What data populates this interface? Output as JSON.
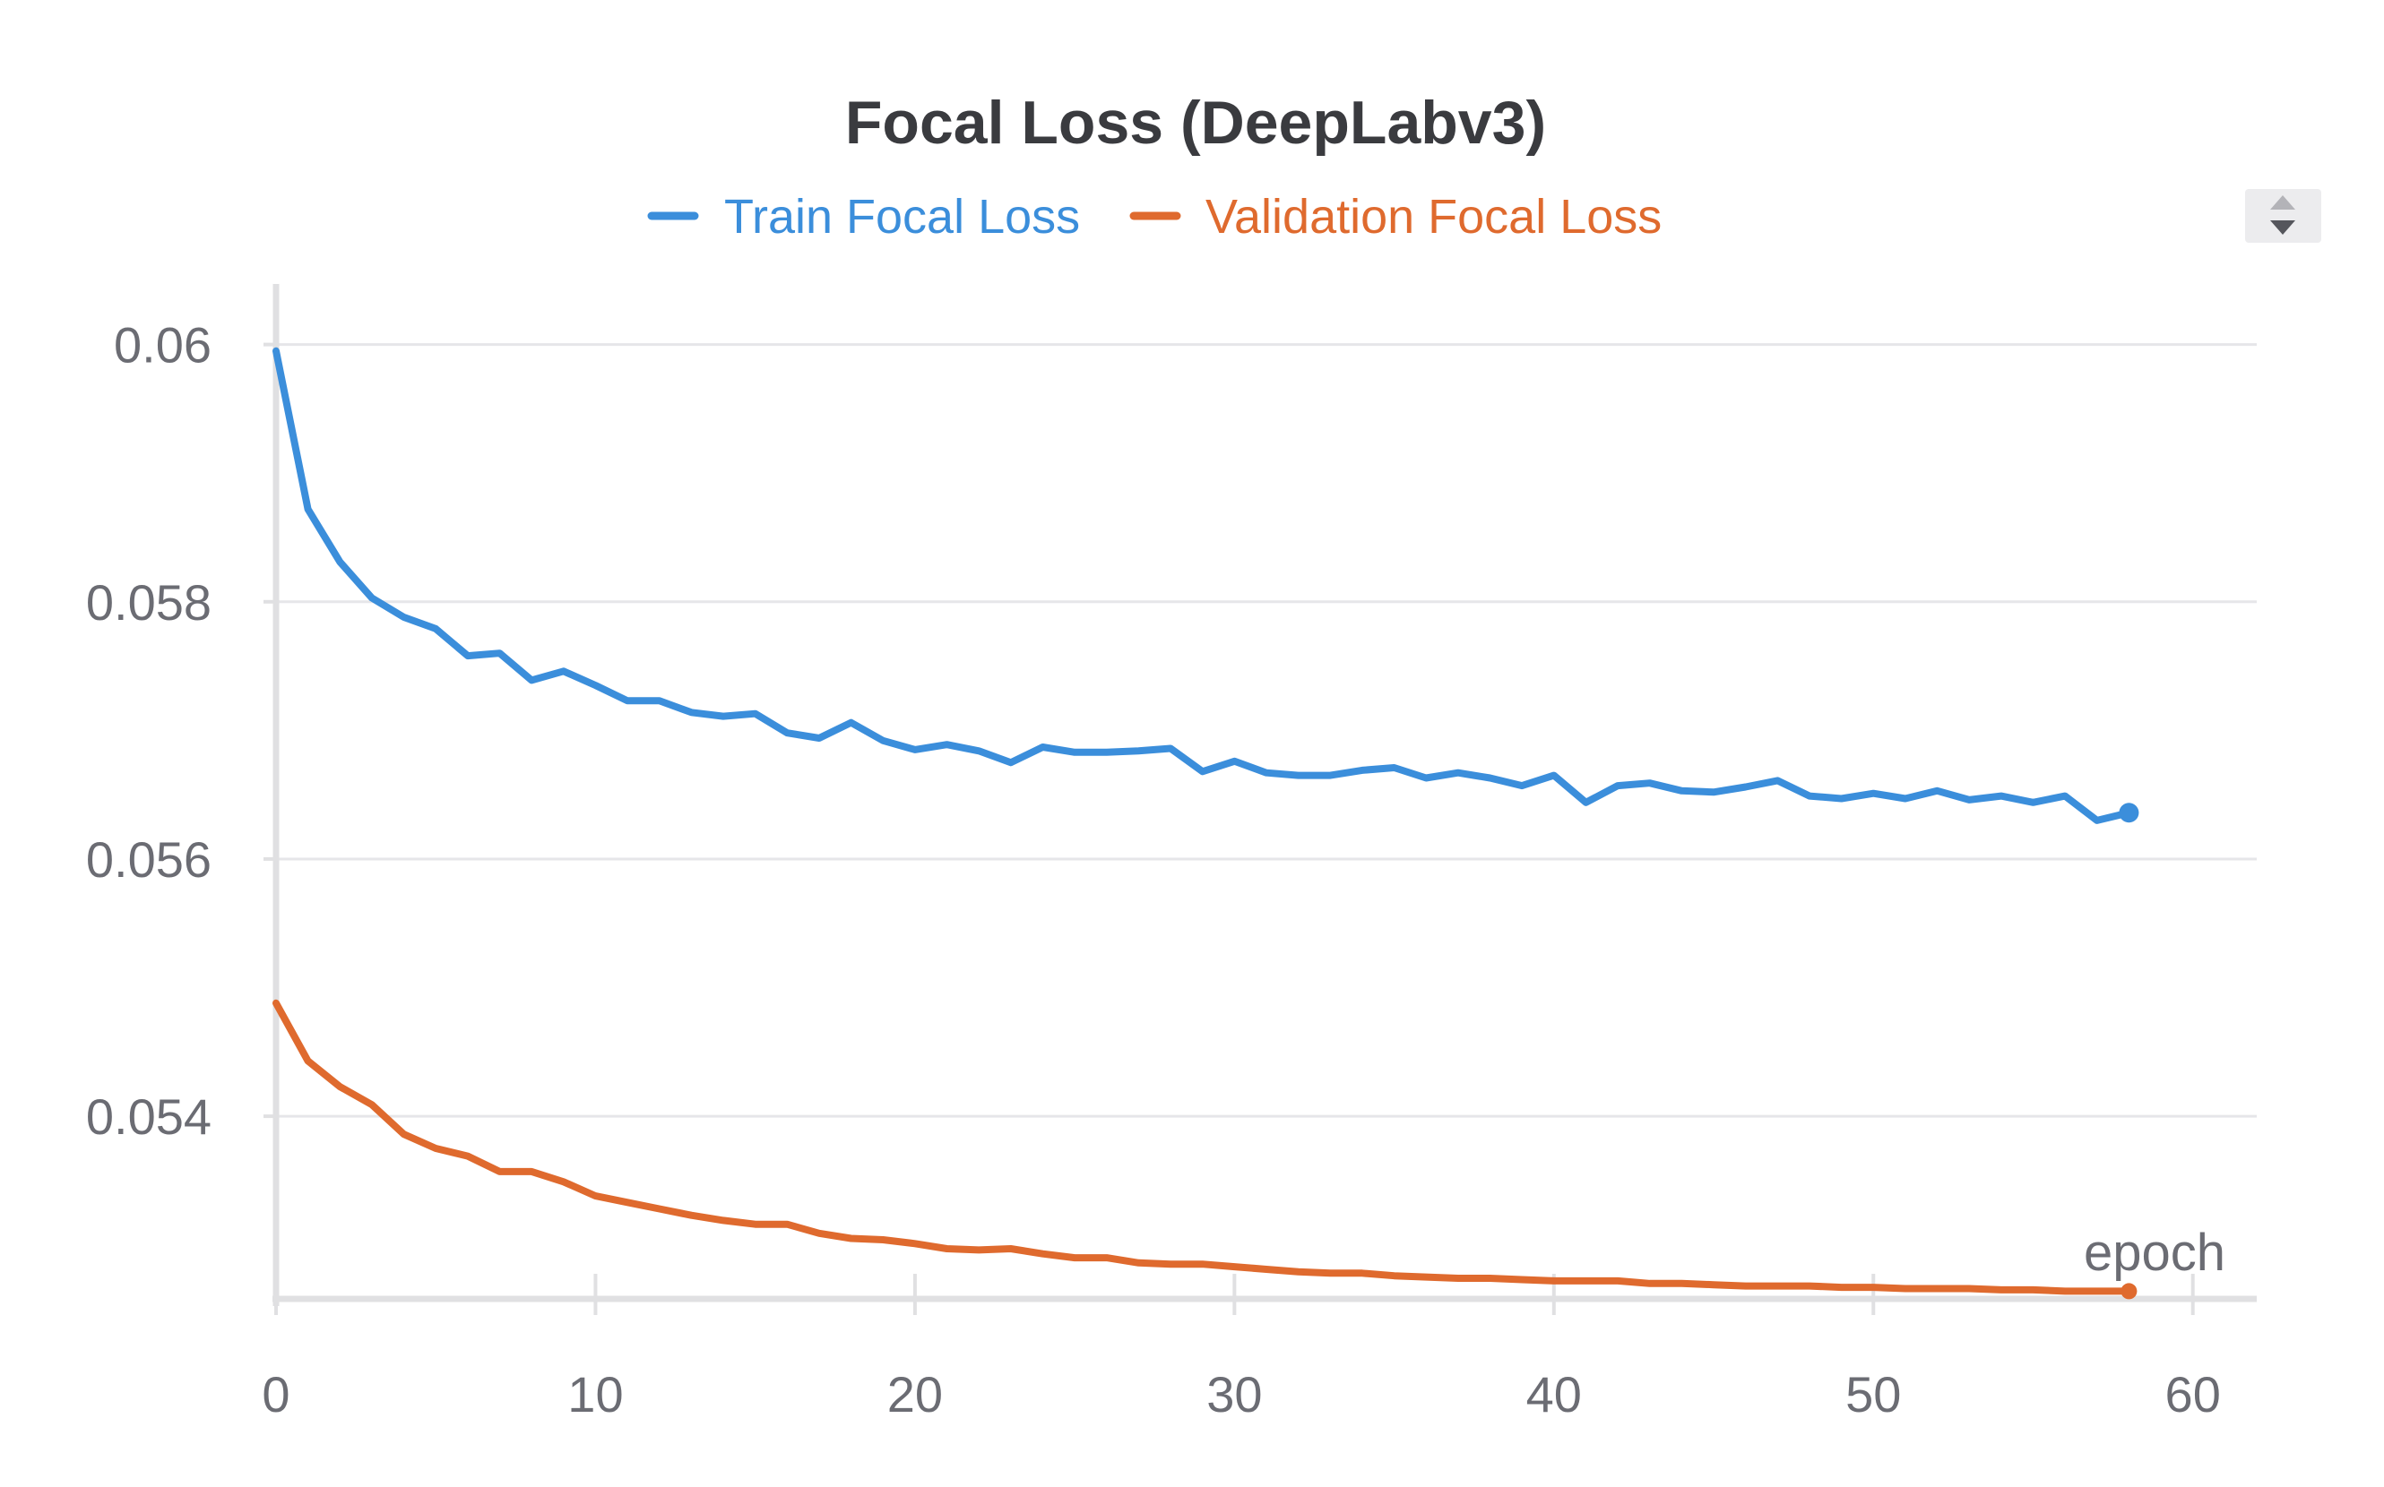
{
  "chart_data": {
    "type": "line",
    "title": "Focal Loss (DeepLabv3)",
    "xlabel": "epoch",
    "ylabel": "",
    "xlim": [
      0,
      62
    ],
    "ylim": [
      0.05258,
      0.06045
    ],
    "x_ticks": [
      0,
      10,
      20,
      30,
      40,
      50,
      60
    ],
    "x_tick_labels": [
      "0",
      "10",
      "20",
      "30",
      "40",
      "50",
      "60"
    ],
    "y_ticks": [
      0.054,
      0.056,
      0.058,
      0.06
    ],
    "y_tick_labels": [
      "0.054",
      "0.056",
      "0.058",
      "0.06"
    ],
    "grid": "horizontal",
    "legend_position": "top-center",
    "series": [
      {
        "name": "Train Focal Loss",
        "color": "#3b8edb",
        "x": [
          0,
          1,
          2,
          3,
          4,
          5,
          6,
          7,
          8,
          9,
          10,
          11,
          12,
          13,
          14,
          15,
          16,
          17,
          18,
          19,
          20,
          21,
          22,
          23,
          24,
          25,
          26,
          27,
          28,
          29,
          30,
          31,
          32,
          33,
          34,
          35,
          36,
          37,
          38,
          39,
          40,
          41,
          42,
          43,
          44,
          45,
          46,
          47,
          48,
          49,
          50,
          51,
          52,
          53,
          54,
          55,
          56,
          57,
          58
        ],
        "values": [
          0.05995,
          0.05872,
          0.05831,
          0.05803,
          0.05788,
          0.05779,
          0.05758,
          0.0576,
          0.05739,
          0.05746,
          0.05735,
          0.05723,
          0.05723,
          0.05714,
          0.05711,
          0.05713,
          0.05698,
          0.05694,
          0.05706,
          0.05692,
          0.05685,
          0.05689,
          0.05684,
          0.05675,
          0.05687,
          0.05683,
          0.05683,
          0.05684,
          0.05686,
          0.05668,
          0.05676,
          0.05667,
          0.05665,
          0.05665,
          0.05669,
          0.05671,
          0.05663,
          0.05667,
          0.05663,
          0.05657,
          0.05665,
          0.05644,
          0.05657,
          0.05659,
          0.05653,
          0.05652,
          0.05656,
          0.05661,
          0.05649,
          0.05647,
          0.05651,
          0.05647,
          0.05653,
          0.05646,
          0.05649,
          0.05644,
          0.05649,
          0.0563,
          0.05636
        ]
      },
      {
        "name": "Validation Focal Loss",
        "color": "#df6a2e",
        "x": [
          0,
          1,
          2,
          3,
          4,
          5,
          6,
          7,
          8,
          9,
          10,
          11,
          12,
          13,
          14,
          15,
          16,
          17,
          18,
          19,
          20,
          21,
          22,
          23,
          24,
          25,
          26,
          27,
          28,
          29,
          30,
          31,
          32,
          33,
          34,
          35,
          36,
          37,
          38,
          39,
          40,
          41,
          42,
          43,
          44,
          45,
          46,
          47,
          48,
          49,
          50,
          51,
          52,
          53,
          54,
          55,
          56,
          57,
          58
        ],
        "values": [
          0.05488,
          0.05443,
          0.05423,
          0.05409,
          0.05386,
          0.05375,
          0.05369,
          0.05357,
          0.05357,
          0.05349,
          0.05338,
          0.05333,
          0.05328,
          0.05323,
          0.05319,
          0.05316,
          0.05316,
          0.05309,
          0.05305,
          0.05304,
          0.05301,
          0.05297,
          0.05296,
          0.05297,
          0.05293,
          0.0529,
          0.0529,
          0.05286,
          0.05285,
          0.05285,
          0.05283,
          0.05281,
          0.05279,
          0.05278,
          0.05278,
          0.05276,
          0.05275,
          0.05274,
          0.05274,
          0.05273,
          0.05272,
          0.05272,
          0.05272,
          0.0527,
          0.0527,
          0.05269,
          0.05268,
          0.05268,
          0.05268,
          0.05267,
          0.05267,
          0.05266,
          0.05266,
          0.05266,
          0.05265,
          0.05265,
          0.05264,
          0.05264,
          0.05264
        ]
      }
    ]
  },
  "controls": {
    "sort_icon": "sort-up-down-icon"
  }
}
